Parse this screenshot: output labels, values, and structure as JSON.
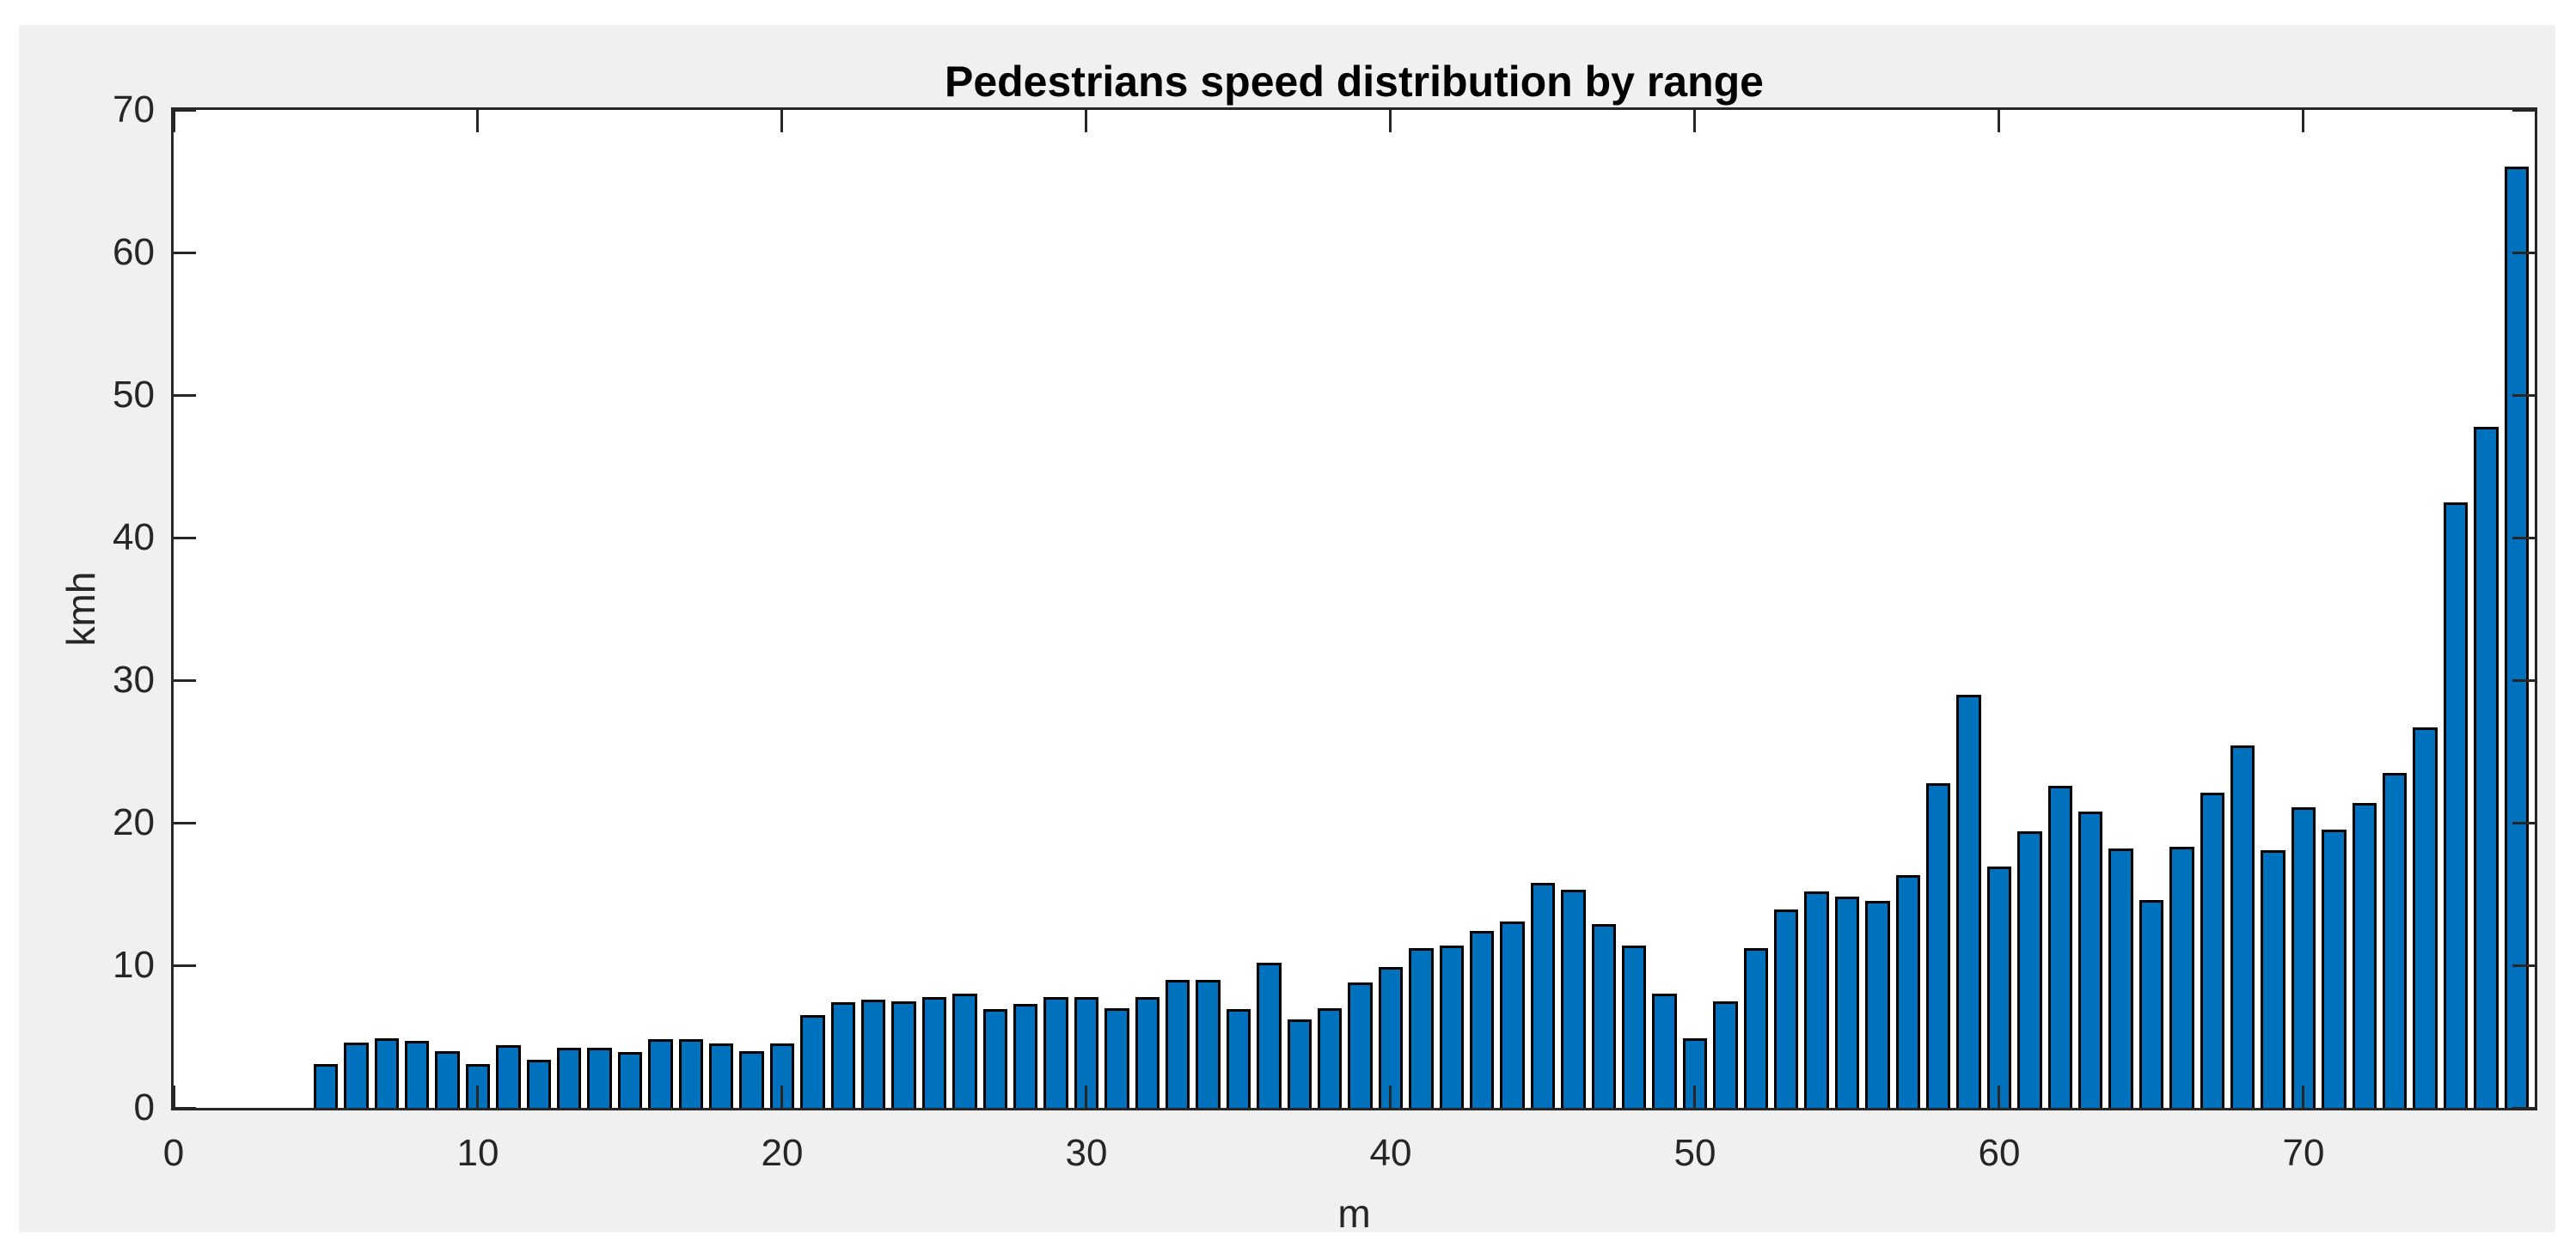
{
  "chart_data": {
    "type": "bar",
    "title": "Pedestrians speed distribution by range",
    "xlabel": "m",
    "ylabel": "kmh",
    "xlim": [
      0,
      77.6
    ],
    "ylim": [
      0,
      70
    ],
    "xticks": [
      0,
      10,
      20,
      30,
      40,
      50,
      60,
      70
    ],
    "yticks": [
      0,
      10,
      20,
      30,
      40,
      50,
      60,
      70
    ],
    "grid": false,
    "legend": null,
    "bar_width": 0.8,
    "colors": {
      "bar_fill": "#0072BD",
      "bar_edge": "#000000",
      "figure_background": "#F0F0F0",
      "plot_background": "#FFFFFF",
      "axis_color": "#262626",
      "title_color": "#000000"
    },
    "x": [
      5,
      6,
      7,
      8,
      9,
      10,
      11,
      12,
      13,
      14,
      15,
      16,
      17,
      18,
      19,
      20,
      21,
      22,
      23,
      24,
      25,
      26,
      27,
      28,
      29,
      30,
      31,
      32,
      33,
      34,
      35,
      36,
      37,
      38,
      39,
      40,
      41,
      42,
      43,
      44,
      45,
      46,
      47,
      48,
      49,
      50,
      51,
      52,
      53,
      54,
      55,
      56,
      57,
      58,
      59,
      60,
      61,
      62,
      63,
      64,
      65,
      66,
      67,
      68,
      69,
      70,
      71,
      72,
      73,
      74,
      75,
      76,
      77
    ],
    "values": [
      3.1,
      4.6,
      4.9,
      4.7,
      4.0,
      3.1,
      4.4,
      3.4,
      4.2,
      4.2,
      3.9,
      4.8,
      4.8,
      4.5,
      4.0,
      4.5,
      6.5,
      7.4,
      7.6,
      7.5,
      7.8,
      8.0,
      6.9,
      7.3,
      7.8,
      7.8,
      7.0,
      7.8,
      9.0,
      9.0,
      6.9,
      10.2,
      6.2,
      7.0,
      8.8,
      9.9,
      11.2,
      11.4,
      12.4,
      13.1,
      15.8,
      15.3,
      12.9,
      11.4,
      8.0,
      4.9,
      7.5,
      11.2,
      13.9,
      15.2,
      14.8,
      14.5,
      16.3,
      22.8,
      29.0,
      16.9,
      19.4,
      22.6,
      20.8,
      18.2,
      14.6,
      18.3,
      22.1,
      25.4,
      18.1,
      21.1,
      19.5,
      21.4,
      23.5,
      26.7,
      42.5,
      47.8,
      66.0
    ]
  }
}
